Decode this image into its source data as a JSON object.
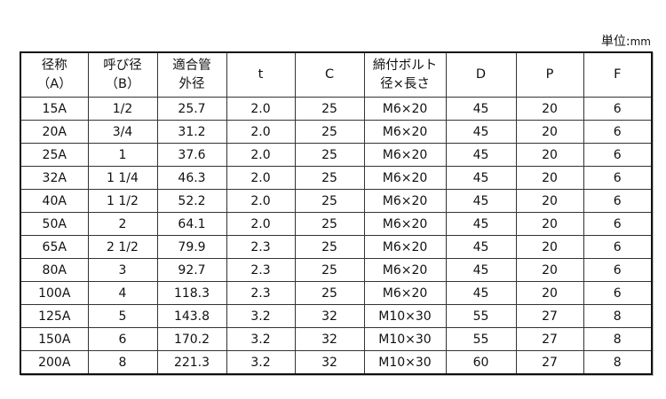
{
  "unit_label": "単位:",
  "unit_value": "mm",
  "headers": [
    [
      "径称",
      "（A）"
    ],
    [
      "呼び径",
      "（B）"
    ],
    [
      "適合管",
      "外径"
    ],
    [
      "t"
    ],
    [
      "C"
    ],
    [
      "締付ボルト",
      "径×長さ"
    ],
    [
      "D"
    ],
    [
      "P"
    ],
    [
      "F"
    ]
  ],
  "rows": [
    [
      "15A",
      "1/2",
      "25.7",
      "2.0",
      "25",
      "M6×20",
      "45",
      "20",
      "6"
    ],
    [
      "20A",
      "3/4",
      "31.2",
      "2.0",
      "25",
      "M6×20",
      "45",
      "20",
      "6"
    ],
    [
      "25A",
      "1",
      "37.6",
      "2.0",
      "25",
      "M6×20",
      "45",
      "20",
      "6"
    ],
    [
      "32A",
      "1 1/4",
      "46.3",
      "2.0",
      "25",
      "M6×20",
      "45",
      "20",
      "6"
    ],
    [
      "40A",
      "1 1/2",
      "52.2",
      "2.0",
      "25",
      "M6×20",
      "45",
      "20",
      "6"
    ],
    [
      "50A",
      "2",
      "64.1",
      "2.0",
      "25",
      "M6×20",
      "45",
      "20",
      "6"
    ],
    [
      "65A",
      "2 1/2",
      "79.9",
      "2.3",
      "25",
      "M6×20",
      "45",
      "20",
      "6"
    ],
    [
      "80A",
      "3",
      "92.7",
      "2.3",
      "25",
      "M6×20",
      "45",
      "20",
      "6"
    ],
    [
      "100A",
      "4",
      "118.3",
      "2.3",
      "25",
      "M6×20",
      "45",
      "20",
      "6"
    ],
    [
      "125A",
      "5",
      "143.8",
      "3.2",
      "32",
      "M10×30",
      "55",
      "27",
      "8"
    ],
    [
      "150A",
      "6",
      "170.2",
      "3.2",
      "32",
      "M10×30",
      "55",
      "27",
      "8"
    ],
    [
      "200A",
      "8",
      "221.3",
      "3.2",
      "32",
      "M10×30",
      "60",
      "27",
      "8"
    ]
  ]
}
